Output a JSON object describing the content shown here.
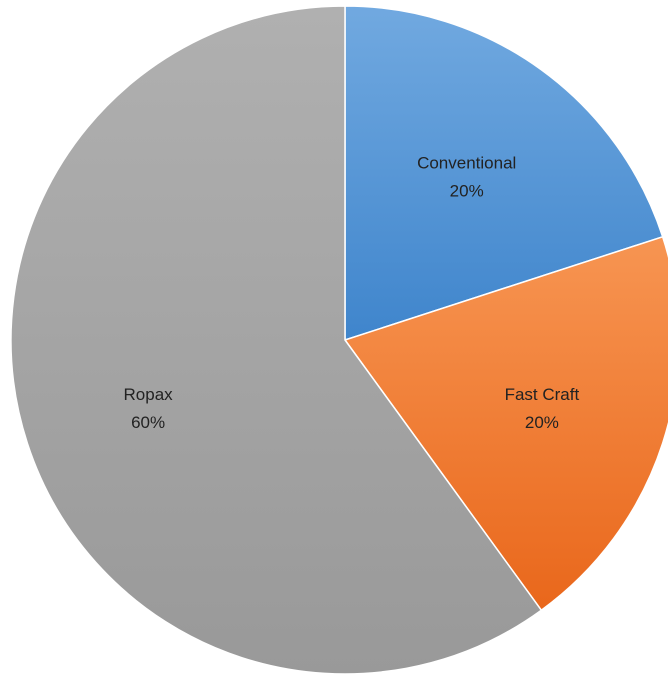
{
  "chart_data": {
    "type": "pie",
    "title": "",
    "legend": "none",
    "slices": [
      {
        "name": "Conventional",
        "value": 20,
        "percent_label": "20%",
        "color_top": "#71a9e0",
        "color_bottom": "#3f85cc"
      },
      {
        "name": "Fast Craft",
        "value": 20,
        "percent_label": "20%",
        "color_top": "#f79552",
        "color_bottom": "#e9671b"
      },
      {
        "name": "Ropax",
        "value": 60,
        "percent_label": "60%",
        "color_top": "#b0b0b0",
        "color_bottom": "#999999"
      }
    ]
  }
}
